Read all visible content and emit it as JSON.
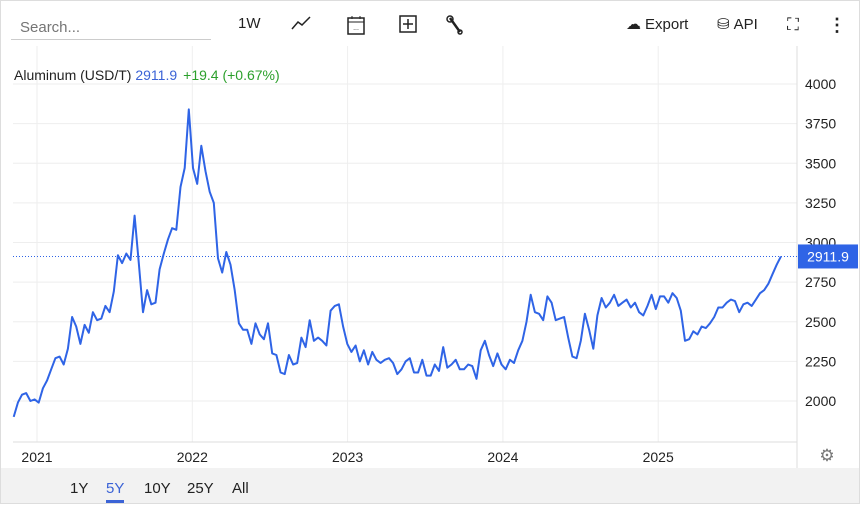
{
  "toolbar": {
    "search_placeholder": "Search...",
    "interval": "1W",
    "export": "Export",
    "api": "API"
  },
  "legend": {
    "name": "Aluminum (USD/T)",
    "value": "2911.9",
    "change": "+19.4 (+0.67%)"
  },
  "last_price_label": "2911.9",
  "ranges": [
    "1Y",
    "5Y",
    "10Y",
    "25Y",
    "All"
  ],
  "active_range": "5Y",
  "colors": {
    "line": "#2f64e6",
    "change": "#2ca02c",
    "accent": "#2f64e6"
  },
  "chart_data": {
    "type": "line",
    "title": "Aluminum (USD/T)",
    "xlabel": "",
    "ylabel": "",
    "ylim": [
      1750,
      4250
    ],
    "yticks": [
      2000,
      2250,
      2500,
      2750,
      3000,
      3250,
      3500,
      3750,
      4000
    ],
    "xticks": [
      "2021",
      "2022",
      "2023",
      "2024",
      "2025"
    ],
    "x_start": 2020.85,
    "x_end": 2025.79,
    "last_value": 2911.9,
    "series": [
      {
        "name": "Aluminum",
        "values": [
          1900,
          1990,
          2040,
          2050,
          2000,
          2010,
          1990,
          2080,
          2130,
          2200,
          2270,
          2280,
          2230,
          2330,
          2530,
          2470,
          2360,
          2480,
          2430,
          2560,
          2510,
          2520,
          2600,
          2560,
          2690,
          2920,
          2870,
          2930,
          2890,
          3170,
          2870,
          2560,
          2700,
          2610,
          2620,
          2830,
          2930,
          3020,
          3090,
          3080,
          3350,
          3470,
          3840,
          3470,
          3370,
          3610,
          3450,
          3320,
          3250,
          2900,
          2810,
          2940,
          2860,
          2700,
          2490,
          2450,
          2450,
          2360,
          2490,
          2420,
          2390,
          2490,
          2300,
          2290,
          2180,
          2170,
          2290,
          2230,
          2240,
          2400,
          2340,
          2510,
          2380,
          2400,
          2380,
          2350,
          2570,
          2600,
          2610,
          2470,
          2360,
          2310,
          2350,
          2250,
          2320,
          2230,
          2310,
          2260,
          2240,
          2260,
          2270,
          2240,
          2170,
          2200,
          2250,
          2270,
          2180,
          2180,
          2260,
          2160,
          2160,
          2230,
          2190,
          2340,
          2210,
          2230,
          2260,
          2200,
          2200,
          2230,
          2220,
          2140,
          2320,
          2380,
          2290,
          2220,
          2300,
          2230,
          2200,
          2260,
          2240,
          2320,
          2380,
          2500,
          2670,
          2560,
          2550,
          2510,
          2660,
          2620,
          2510,
          2520,
          2530,
          2400,
          2280,
          2270,
          2380,
          2550,
          2450,
          2330,
          2540,
          2650,
          2590,
          2620,
          2670,
          2600,
          2620,
          2640,
          2590,
          2620,
          2560,
          2540,
          2600,
          2670,
          2580,
          2660,
          2660,
          2620,
          2680,
          2650,
          2570,
          2380,
          2390,
          2440,
          2420,
          2470,
          2460,
          2490,
          2530,
          2590,
          2590,
          2620,
          2640,
          2630,
          2560,
          2610,
          2620,
          2600,
          2640,
          2680,
          2700,
          2740,
          2800,
          2860,
          2911.9
        ]
      }
    ]
  }
}
